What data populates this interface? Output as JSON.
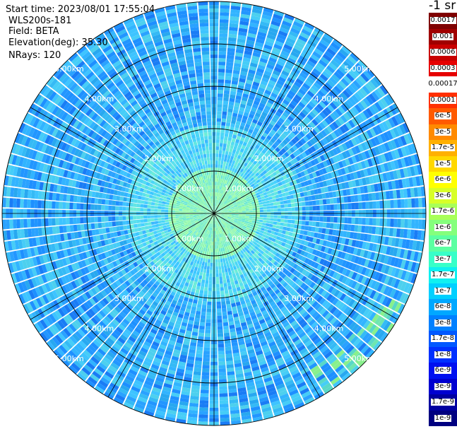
{
  "header": {
    "start_time": "Start time: 2023/08/01 17:55:04",
    "instrument": "WLS200s-181",
    "field": "Field: BETA",
    "elevation": "Elevation(deg): 35.30",
    "nrays": "NRays: 120"
  },
  "colorbar": {
    "title": "-1 sr",
    "labels": [
      "0.0017",
      "0.001",
      "0.0006",
      "0.0003",
      "0.00017",
      "0.0001",
      "6e-5",
      "3e-5",
      "1.7e-5",
      "1e-5",
      "6e-6",
      "3e-6",
      "1.7e-6",
      "1e-6",
      "6e-7",
      "3e-7",
      "1.7e-7",
      "1e-7",
      "6e-8",
      "3e-8",
      "1.7e-8",
      "1e-8",
      "6e-9",
      "3e-9",
      "1.7e-9",
      "1e-9"
    ],
    "colors": [
      "#7f0000",
      "#a00000",
      "#c80000",
      "#e60000",
      "#ffffff",
      "#ff3000",
      "#ff5a00",
      "#ff8a00",
      "#ffb000",
      "#ffd800",
      "#ffff00",
      "#d8ff28",
      "#a8ff58",
      "#84ff7c",
      "#5cffa2",
      "#38ffc8",
      "#10f0f0",
      "#00d0ff",
      "#00a8ff",
      "#0080ff",
      "#0058ff",
      "#0030ff",
      "#0010f0",
      "#0000d0",
      "#0000a0",
      "#000080"
    ]
  },
  "chart_data": {
    "type": "polar-ppi",
    "title": "",
    "field": "BETA",
    "n_rays": 120,
    "azimuth_spokes_deg": [
      0,
      30,
      60,
      90,
      120,
      150,
      180,
      210,
      240,
      270,
      300,
      330
    ],
    "range_rings_km": [
      1,
      2,
      3,
      4,
      5
    ],
    "range_ring_labels": [
      "1.00km",
      "2.00km",
      "3.00km",
      "4.00km",
      "5.00km"
    ],
    "max_range_km": 5.0,
    "value_bands": [
      {
        "range_km": [
          0,
          1
        ],
        "typical_beta": "1.7e-6"
      },
      {
        "range_km": [
          1,
          2
        ],
        "typical_beta": "3e-7"
      },
      {
        "range_km": [
          2,
          5
        ],
        "typical_beta": "6e-8"
      }
    ],
    "colors": {
      "background_field": "#2fb6ff",
      "rings": "#000000"
    }
  }
}
